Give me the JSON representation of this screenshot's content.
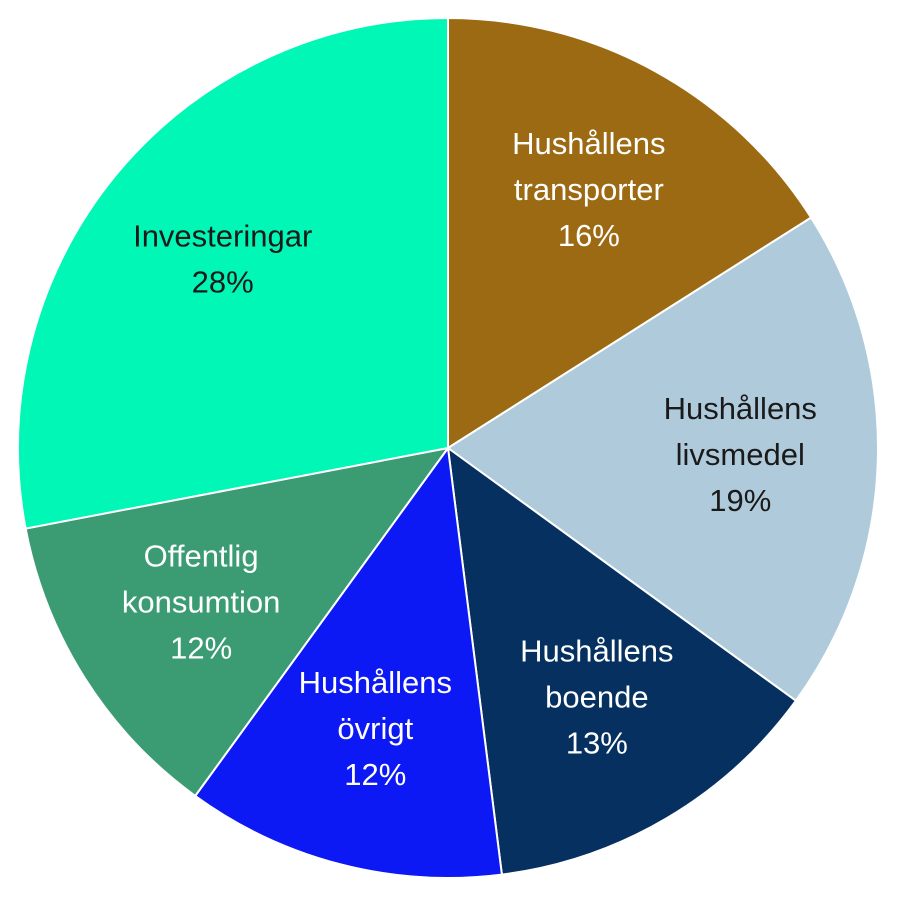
{
  "chart_data": {
    "type": "pie",
    "slices": [
      {
        "label_lines": [
          "Hushållens",
          "transporter"
        ],
        "percent_label": "16%",
        "value": 16,
        "color": "#9B6A13",
        "text_color": "#ffffff"
      },
      {
        "label_lines": [
          "Hushållens",
          "livsmedel"
        ],
        "percent_label": "19%",
        "value": 19,
        "color": "#AFCBDB",
        "text_color": "#1a1a1a"
      },
      {
        "label_lines": [
          "Hushållens",
          "boende"
        ],
        "percent_label": "13%",
        "value": 13,
        "color": "#06305F",
        "text_color": "#ffffff"
      },
      {
        "label_lines": [
          "Hushållens",
          "övrigt"
        ],
        "percent_label": "12%",
        "value": 12,
        "color": "#0D19F4",
        "text_color": "#ffffff"
      },
      {
        "label_lines": [
          "Offentlig",
          "konsumtion"
        ],
        "percent_label": "12%",
        "value": 12,
        "color": "#3B9C74",
        "text_color": "#ffffff"
      },
      {
        "label_lines": [
          "Investeringar"
        ],
        "percent_label": "28%",
        "value": 28,
        "color": "#00F7B5",
        "text_color": "#1a1a1a"
      }
    ],
    "start": "12 o'clock",
    "direction": "clockwise",
    "legend": "none"
  }
}
